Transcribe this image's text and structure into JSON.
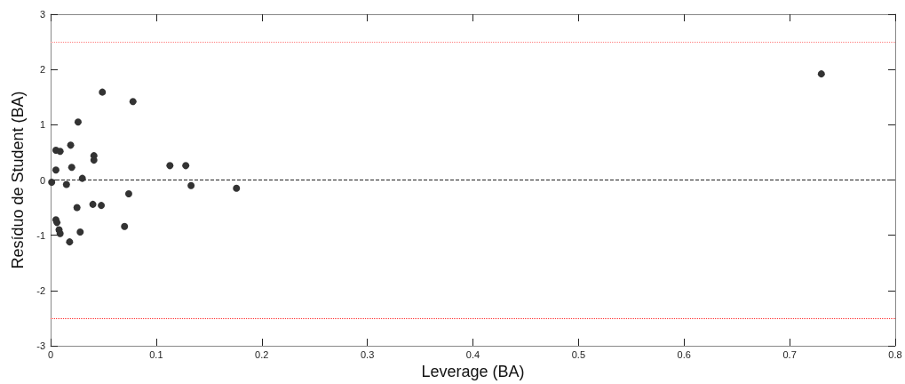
{
  "chart_data": {
    "type": "scatter",
    "xlabel": "Leverage (BA)",
    "ylabel": "Resíduo de Student (BA)",
    "x": [
      0.049,
      0.078,
      0.026,
      0.005,
      0.009,
      0.019,
      0.041,
      0.041,
      0.02,
      0.005,
      0.113,
      0.128,
      0.133,
      0.001,
      0.03,
      0.015,
      0.074,
      0.025,
      0.04,
      0.048,
      0.005,
      0.006,
      0.07,
      0.008,
      0.009,
      0.028,
      0.018,
      0.176,
      0.73
    ],
    "series": [
      {
        "color": "#333333",
        "values": [
          1.59,
          1.42,
          1.05,
          0.54,
          0.52,
          0.63,
          0.44,
          0.36,
          0.23,
          0.18,
          0.26,
          0.26,
          -0.1,
          -0.04,
          0.03,
          -0.08,
          -0.25,
          -0.5,
          -0.44,
          -0.46,
          -0.72,
          -0.77,
          -0.84,
          -0.9,
          -0.97,
          -0.94,
          -1.12,
          -0.15,
          1.92
        ]
      }
    ],
    "xlim": [
      0,
      0.8
    ],
    "xticks": [
      0,
      0.1,
      0.2,
      0.3,
      0.4,
      0.5,
      0.6,
      0.7,
      0.8
    ],
    "ylim": [
      -3,
      3
    ],
    "yticks": [
      -3,
      -2,
      -1,
      0,
      1,
      2,
      3
    ],
    "ref_lines": [
      {
        "axis": "y",
        "value": 2.5,
        "color": "#ff8080",
        "line_style": "dotted"
      },
      {
        "axis": "y",
        "value": -2.5,
        "color": "#ff3030",
        "line_style": "dotted"
      },
      {
        "axis": "y",
        "value": 0,
        "color": "#222222",
        "line_style": "dashed"
      }
    ],
    "grid": false,
    "marker": "circle"
  }
}
